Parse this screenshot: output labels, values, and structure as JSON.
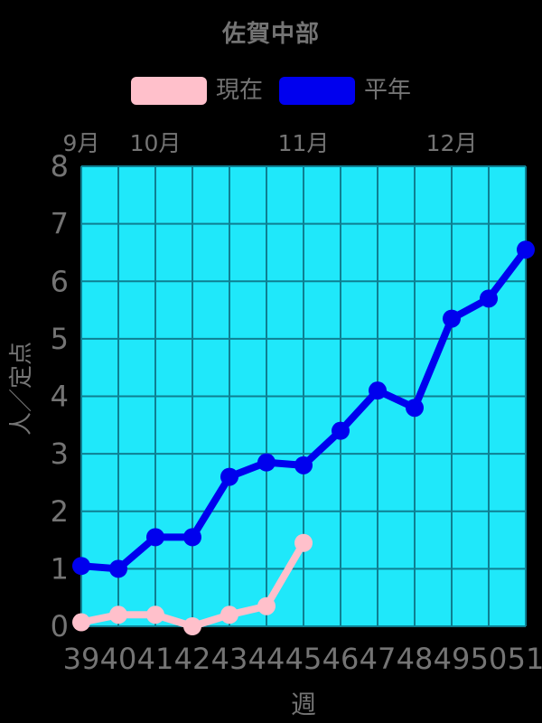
{
  "page": {
    "title": "佐賀中部"
  },
  "chart_data": {
    "type": "line",
    "title": "佐賀中部",
    "xlabel": "週",
    "ylabel": "人／定点",
    "xlim": [
      39,
      51
    ],
    "ylim": [
      0,
      8
    ],
    "xticks": [
      39,
      40,
      41,
      42,
      43,
      44,
      45,
      46,
      47,
      48,
      49,
      50,
      51
    ],
    "yticks": [
      0,
      1,
      2,
      3,
      4,
      5,
      6,
      7,
      8
    ],
    "month_labels": [
      {
        "label": "9月",
        "week": 39
      },
      {
        "label": "10月",
        "week": 41
      },
      {
        "label": "11月",
        "week": 45
      },
      {
        "label": "12月",
        "week": 49
      }
    ],
    "grid": true,
    "legend_position": "top",
    "series": [
      {
        "name": "現在",
        "color": "#ffc0cb",
        "x": [
          39,
          40,
          41,
          42,
          43,
          44,
          45
        ],
        "values": [
          0.07,
          0.2,
          0.2,
          0.0,
          0.2,
          0.35,
          1.45
        ]
      },
      {
        "name": "平年",
        "color": "#0000ee",
        "x": [
          39,
          40,
          41,
          42,
          43,
          44,
          45,
          46,
          47,
          48,
          49,
          50,
          51
        ],
        "values": [
          1.05,
          1.0,
          1.55,
          1.55,
          2.6,
          2.85,
          2.8,
          3.4,
          4.1,
          3.8,
          5.35,
          5.7,
          6.55
        ]
      }
    ],
    "colors": {
      "background": "#000000",
      "plot_bg": "#1fe8fa",
      "grid": "#0e7f92",
      "text": "#747474"
    }
  }
}
